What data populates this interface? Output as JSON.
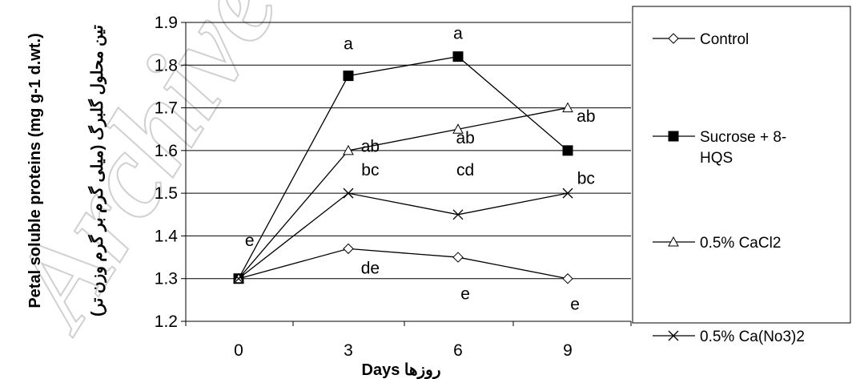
{
  "chart_data": {
    "type": "line",
    "x": [
      0,
      3,
      6,
      9
    ],
    "x_tick_labels": [
      "0",
      "3",
      "6",
      "9"
    ],
    "xlabel": "Days روزها",
    "ylabel": "Petal soluble proteins  (mg g-1 d.wt.)",
    "ylabel_fa": "تین محلول گلبرگ (میلی گرم بر گرم وزن تر)",
    "ylim": [
      1.2,
      1.9
    ],
    "y_ticks": [
      "1.2",
      "1.3",
      "1.4",
      "1.5",
      "1.6",
      "1.7",
      "1.8",
      "1.9"
    ],
    "grid": "horizontal",
    "legend_position": "right",
    "watermark": "Archive",
    "series": [
      {
        "name": "Control",
        "marker": "diamond",
        "values": [
          1.3,
          1.37,
          1.35,
          1.3
        ]
      },
      {
        "name": "Sucrose + 8-HQS",
        "legend_lines": [
          "Sucrose + 8-",
          "HQS"
        ],
        "marker": "square",
        "values": [
          1.3,
          1.775,
          1.82,
          1.6
        ]
      },
      {
        "name": "0.5% CaCl2",
        "marker": "triangle",
        "values": [
          1.3,
          1.6,
          1.65,
          1.7
        ]
      },
      {
        "name": "0.5% Ca(No3)2",
        "marker": "cross",
        "values": [
          1.3,
          1.5,
          1.45,
          1.5
        ]
      }
    ],
    "annotations": [
      {
        "text": "a",
        "x": 3,
        "y": 1.85
      },
      {
        "text": "a",
        "x": 6,
        "y": 1.875
      },
      {
        "text": "ab",
        "x": 9.5,
        "y": 1.68
      },
      {
        "text": "ab",
        "x": 3.6,
        "y": 1.61
      },
      {
        "text": "ab",
        "x": 6.2,
        "y": 1.63
      },
      {
        "text": "bc",
        "x": 3.6,
        "y": 1.555
      },
      {
        "text": "cd",
        "x": 6.2,
        "y": 1.555
      },
      {
        "text": "bc",
        "x": 9.5,
        "y": 1.535
      },
      {
        "text": "e",
        "x": 0.3,
        "y": 1.39
      },
      {
        "text": "de",
        "x": 3.6,
        "y": 1.325
      },
      {
        "text": "e",
        "x": 6.2,
        "y": 1.265
      },
      {
        "text": "e",
        "x": 9.2,
        "y": 1.24
      }
    ]
  }
}
